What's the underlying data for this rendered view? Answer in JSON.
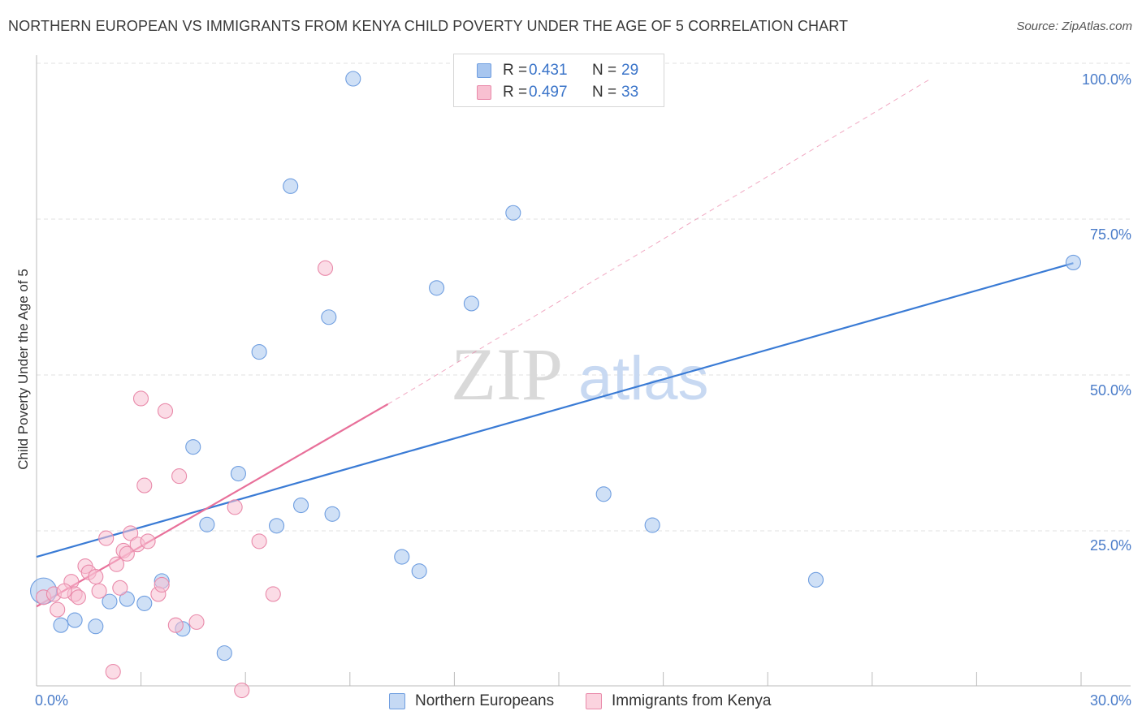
{
  "title": "NORTHERN EUROPEAN VS IMMIGRANTS FROM KENYA CHILD POVERTY UNDER THE AGE OF 5 CORRELATION CHART",
  "source": "Source: ZipAtlas.com",
  "watermark": {
    "zip": "ZIP",
    "atlas": "atlas"
  },
  "legend": {
    "rows": [
      {
        "r_label": "R =",
        "r_value": "0.431",
        "n_label": "N =",
        "n_value": "29",
        "color": "#a8c6ef",
        "border": "#6f9ee0"
      },
      {
        "r_label": "R =",
        "r_value": "0.497",
        "n_label": "N =",
        "n_value": "33",
        "color": "#f8c0d1",
        "border": "#e98aaa"
      }
    ]
  },
  "bottom_legend": [
    "Northern Europeans",
    "Immigrants from Kenya"
  ],
  "chart_data": {
    "type": "scatter",
    "title": "NORTHERN EUROPEAN VS IMMIGRANTS FROM KENYA CHILD POVERTY UNDER THE AGE OF 5 CORRELATION CHART",
    "xlabel": "",
    "ylabel": "Child Poverty Under the Age of 5",
    "xlim": [
      0,
      30
    ],
    "ylim": [
      0,
      100
    ],
    "x_tick_labels": [
      "0.0%",
      "30.0%"
    ],
    "y_tick_labels": [
      "100.0%",
      "75.0%",
      "50.0%",
      "25.0%"
    ],
    "y_tick_values": [
      100,
      75,
      50,
      25
    ],
    "series": [
      {
        "name": "Northern Europeans",
        "color": "#a8c6ef",
        "stroke": "#6f9ee0",
        "line_color": "#3a7bd5",
        "trend": {
          "x0": 0,
          "y0": 23.0,
          "x1": 29.8,
          "y1": 70.3,
          "dashed": false
        },
        "points": [
          [
            0.2,
            17.5,
            16
          ],
          [
            0.7,
            12.0,
            9
          ],
          [
            1.1,
            12.8,
            9
          ],
          [
            1.7,
            11.8,
            9
          ],
          [
            2.1,
            15.8,
            9
          ],
          [
            2.6,
            16.2,
            9
          ],
          [
            3.1,
            15.5,
            9
          ],
          [
            3.6,
            19.1,
            9
          ],
          [
            4.2,
            11.4,
            9
          ],
          [
            4.5,
            40.7,
            9
          ],
          [
            4.9,
            28.2,
            9
          ],
          [
            5.4,
            7.5,
            9
          ],
          [
            5.8,
            36.4,
            9
          ],
          [
            6.4,
            56.0,
            9
          ],
          [
            6.9,
            28.0,
            9
          ],
          [
            7.3,
            82.7,
            9
          ],
          [
            7.6,
            31.3,
            9
          ],
          [
            8.4,
            61.6,
            9
          ],
          [
            8.5,
            29.9,
            9
          ],
          [
            9.1,
            100.0,
            9
          ],
          [
            10.5,
            23.0,
            9
          ],
          [
            11.0,
            20.7,
            9
          ],
          [
            11.5,
            66.3,
            9
          ],
          [
            12.5,
            63.8,
            9
          ],
          [
            13.7,
            78.4,
            9
          ],
          [
            16.3,
            33.1,
            9
          ],
          [
            17.7,
            28.1,
            9
          ],
          [
            22.4,
            19.3,
            9
          ],
          [
            29.8,
            70.4,
            9
          ]
        ]
      },
      {
        "name": "Immigrants from Kenya",
        "color": "#f8c0d1",
        "stroke": "#e98aaa",
        "line_color": "#e8709a",
        "trend": {
          "x0": 0,
          "y0": 15.0,
          "x1": 10.1,
          "y1": 47.6,
          "dashed": false
        },
        "trend_ext": {
          "x0": 10.1,
          "y0": 47.6,
          "x1": 25.7,
          "y1": 100,
          "dashed": true
        },
        "points": [
          [
            0.2,
            16.5,
            9
          ],
          [
            0.5,
            17.0,
            9
          ],
          [
            0.6,
            14.5,
            9
          ],
          [
            1.0,
            19.0,
            9
          ],
          [
            1.1,
            17.0,
            9
          ],
          [
            1.2,
            16.5,
            9
          ],
          [
            1.4,
            21.5,
            9
          ],
          [
            1.5,
            20.5,
            9
          ],
          [
            1.7,
            19.8,
            9
          ],
          [
            1.8,
            17.5,
            9
          ],
          [
            2.0,
            26.0,
            9
          ],
          [
            2.2,
            4.5,
            9
          ],
          [
            2.3,
            21.8,
            9
          ],
          [
            2.4,
            18.0,
            9
          ],
          [
            2.5,
            24.0,
            9
          ],
          [
            2.6,
            23.5,
            9
          ],
          [
            2.7,
            26.8,
            9
          ],
          [
            2.9,
            25.0,
            9
          ],
          [
            3.0,
            48.5,
            9
          ],
          [
            3.1,
            34.5,
            9
          ],
          [
            3.2,
            25.5,
            9
          ],
          [
            3.5,
            17.0,
            9
          ],
          [
            3.6,
            18.5,
            9
          ],
          [
            3.7,
            46.5,
            9
          ],
          [
            4.0,
            12.0,
            9
          ],
          [
            4.1,
            36.0,
            9
          ],
          [
            4.6,
            12.5,
            9
          ],
          [
            5.7,
            31.0,
            9
          ],
          [
            5.9,
            1.5,
            9
          ],
          [
            6.4,
            25.5,
            9
          ],
          [
            6.8,
            17.0,
            9
          ],
          [
            8.3,
            69.5,
            9
          ],
          [
            0.8,
            17.5,
            9
          ]
        ]
      }
    ]
  }
}
